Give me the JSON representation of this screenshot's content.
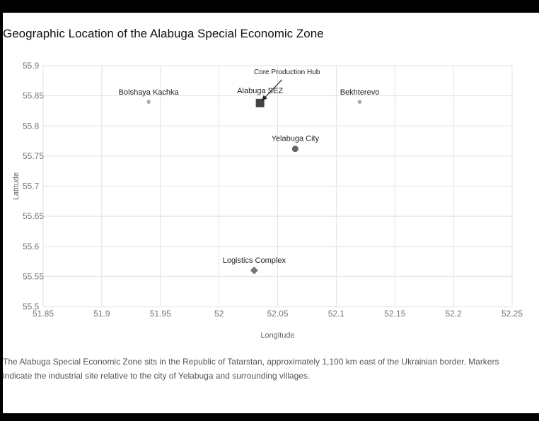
{
  "title": "Geographic Location of the Alabuga Special Economic Zone",
  "caption": "The Alabuga Special Economic Zone sits in the Republic of Tatarstan, approximately 1,100 km east of the Ukrainian border. Markers indicate the industrial site relative to the city of Yelabuga and surrounding villages.",
  "chart_data": {
    "type": "scatter",
    "title": "Geographic Location of the Alabuga Special Economic Zone",
    "xlabel": "Longitude",
    "ylabel": "Latitude",
    "xlim": [
      51.85,
      52.25
    ],
    "ylim": [
      55.5,
      55.9
    ],
    "x_ticks": [
      "51.85",
      "51.9",
      "51.95",
      "52",
      "52.05",
      "52.1",
      "52.15",
      "52.2",
      "52.25"
    ],
    "y_ticks": [
      "55.5",
      "55.55",
      "55.6",
      "55.65",
      "55.7",
      "55.75",
      "55.8",
      "55.85",
      "55.9"
    ],
    "grid": true,
    "points": [
      {
        "label": "Alabuga SEZ",
        "x": 52.035,
        "y": 55.838,
        "marker": "square",
        "color": "#444444"
      },
      {
        "label": "Yelabuga City",
        "x": 52.065,
        "y": 55.762,
        "marker": "circle",
        "color": "#666666"
      },
      {
        "label": "Logistics Complex",
        "x": 52.03,
        "y": 55.56,
        "marker": "diamond",
        "color": "#777777"
      },
      {
        "label": "Bolshaya Kachka",
        "x": 51.94,
        "y": 55.84,
        "marker": "circle",
        "color": "#aaaaaa"
      },
      {
        "label": "Bekhterevo",
        "x": 52.12,
        "y": 55.84,
        "marker": "circle",
        "color": "#aaaaaa"
      }
    ],
    "annotation": {
      "text": "Core Production Hub",
      "x": 52.035,
      "y": 55.838
    }
  }
}
